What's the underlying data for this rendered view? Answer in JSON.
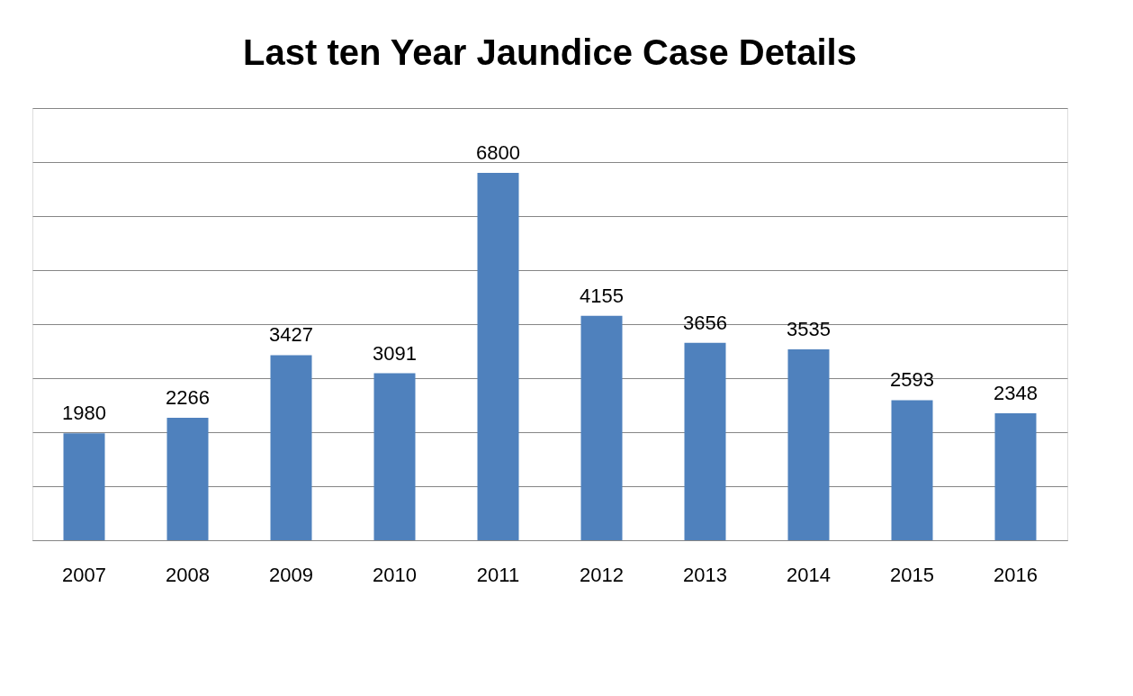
{
  "chart_data": {
    "type": "bar",
    "title": "Last ten Year Jaundice Case Details",
    "categories": [
      "2007",
      "2008",
      "2009",
      "2010",
      "2011",
      "2012",
      "2013",
      "2014",
      "2015",
      "2016"
    ],
    "values": [
      1980,
      2266,
      3427,
      3091,
      6800,
      4155,
      3656,
      3535,
      2593,
      2348
    ],
    "color": "#4f81bd",
    "ylim": [
      0,
      8000
    ],
    "yticks": [
      {
        "value": 0,
        "label": null
      },
      {
        "value": 1000,
        "label": null
      },
      {
        "value": 2000,
        "label": null
      },
      {
        "value": 3000,
        "label": null
      },
      {
        "value": 4000,
        "label": null
      },
      {
        "value": 5000,
        "label": null
      },
      {
        "value": 6000,
        "label": null
      },
      {
        "value": 7000,
        "label": null
      },
      {
        "value": 8000,
        "label": null
      }
    ],
    "grid": "y",
    "data_labels": true,
    "tick_labels": "x"
  }
}
